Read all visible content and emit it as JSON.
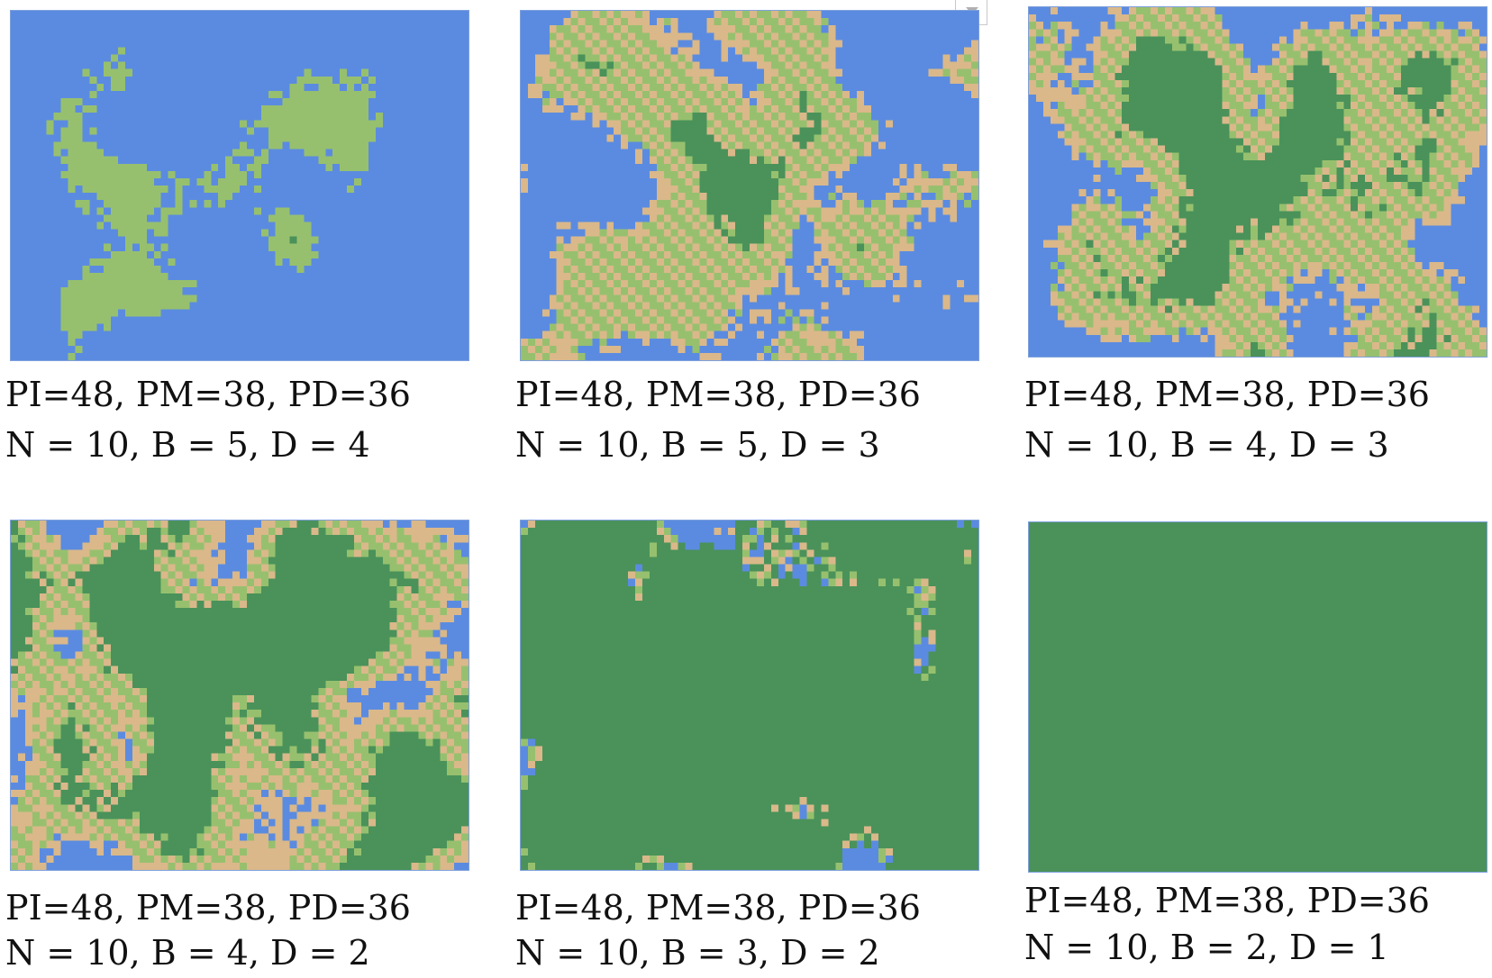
{
  "colors": {
    "water": "#5b8be0",
    "grass": "#97c06e",
    "sand": "#dab88a",
    "forest": "#4a925a"
  },
  "panels": [
    {
      "params": "PI=48, PM=38, PD=36",
      "settings": "N = 10, B = 5, D = 4",
      "coverage": {
        "water": 0.82,
        "grass": 0.18,
        "sand": 0.0,
        "forest": 0.0
      }
    },
    {
      "params": "PI=48, PM=38, PD=36",
      "settings": "N = 10, B = 5, D = 3",
      "coverage": {
        "water": 0.42,
        "grass": 0.33,
        "sand": 0.2,
        "forest": 0.05
      }
    },
    {
      "params": "PI=48, PM=38, PD=36",
      "settings": "N = 10, B = 4, D = 3",
      "coverage": {
        "water": 0.22,
        "grass": 0.42,
        "sand": 0.14,
        "forest": 0.22
      }
    },
    {
      "params": "PI=48, PM=38, PD=36",
      "settings": "N = 10, B = 4, D = 2",
      "coverage": {
        "water": 0.08,
        "grass": 0.27,
        "sand": 0.22,
        "forest": 0.43
      }
    },
    {
      "params": "PI=48, PM=38, PD=36",
      "settings": "N = 10, B = 3, D = 2",
      "coverage": {
        "water": 0.03,
        "grass": 0.03,
        "sand": 0.01,
        "forest": 0.93
      }
    },
    {
      "params": "PI=48, PM=38, PD=36",
      "settings": "N = 10, B = 2, D = 1",
      "coverage": {
        "water": 0.0,
        "grass": 0.0,
        "sand": 0.0,
        "forest": 1.0
      }
    }
  ]
}
